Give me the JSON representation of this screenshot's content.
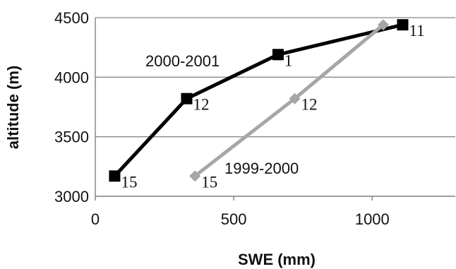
{
  "chart_data": {
    "type": "line",
    "title": "",
    "xlabel": "SWE (mm)",
    "ylabel": "altitude (m)",
    "xlim": [
      0,
      1300
    ],
    "ylim": [
      3000,
      4500
    ],
    "x_ticks": [
      0,
      500,
      1000
    ],
    "y_ticks": [
      3000,
      3500,
      4000,
      4500
    ],
    "grid": "horizontal",
    "legend": "none",
    "series": [
      {
        "name": "2000-2001",
        "color": "#000000",
        "marker": "square",
        "points": [
          {
            "x": 70,
            "y": 3170,
            "label": "15"
          },
          {
            "x": 330,
            "y": 3820,
            "label": "12"
          },
          {
            "x": 660,
            "y": 4190,
            "label": "1"
          },
          {
            "x": 1110,
            "y": 4440,
            "label": "11"
          }
        ]
      },
      {
        "name": "1999-2000",
        "color": "#a6a6a6",
        "marker": "diamond",
        "points": [
          {
            "x": 360,
            "y": 3170,
            "label": "15"
          },
          {
            "x": 720,
            "y": 3820,
            "label": "12"
          },
          {
            "x": 1040,
            "y": 4440,
            "label": ""
          }
        ]
      }
    ]
  }
}
